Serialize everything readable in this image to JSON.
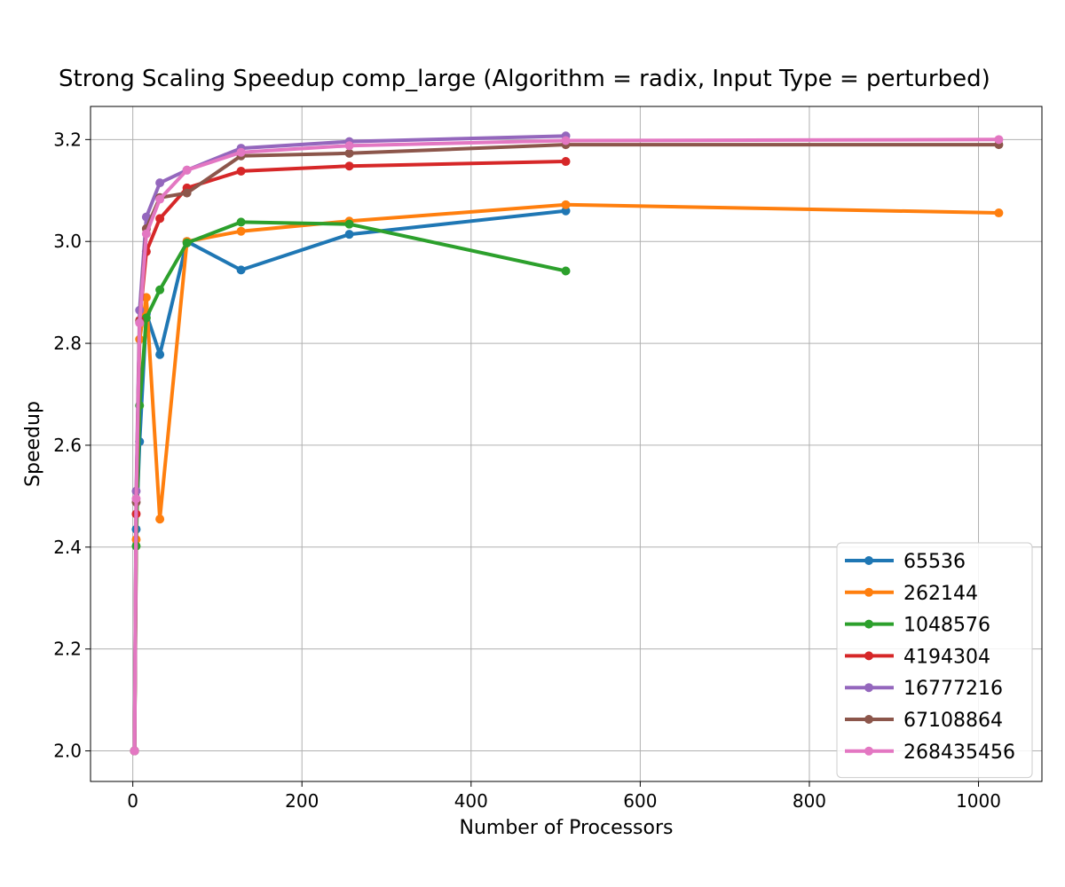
{
  "chart_data": {
    "type": "line",
    "title": "Strong Scaling Speedup comp_large (Algorithm = radix, Input Type = perturbed)",
    "xlabel": "Number of Processors",
    "ylabel": "Speedup",
    "xlim": [
      -50,
      1075
    ],
    "ylim": [
      1.94,
      3.265
    ],
    "xticks": [
      0,
      200,
      400,
      600,
      800,
      1000
    ],
    "yticks": [
      2.0,
      2.2,
      2.4,
      2.6,
      2.8,
      3.0,
      3.2
    ],
    "xtick_labels": [
      "0",
      "200",
      "400",
      "600",
      "800",
      "1000"
    ],
    "ytick_labels": [
      "2.0",
      "2.2",
      "2.4",
      "2.6",
      "2.8",
      "3.0",
      "3.2"
    ],
    "grid": true,
    "legend_position": "lower-right",
    "series": [
      {
        "name": "65536",
        "color": "#1f77b4",
        "x": [
          2,
          4,
          8,
          16,
          32,
          64,
          128,
          256,
          512
        ],
        "y": [
          2.0,
          2.435,
          2.607,
          2.858,
          2.778,
          3.0,
          2.944,
          3.014,
          3.06
        ]
      },
      {
        "name": "262144",
        "color": "#ff7f0e",
        "x": [
          2,
          4,
          8,
          16,
          32,
          64,
          128,
          256,
          512,
          1024
        ],
        "y": [
          2.0,
          2.415,
          2.808,
          2.89,
          2.455,
          3.0,
          3.02,
          3.04,
          3.072,
          3.056
        ]
      },
      {
        "name": "1048576",
        "color": "#2ca02c",
        "x": [
          2,
          4,
          8,
          16,
          32,
          64,
          128,
          256,
          512
        ],
        "y": [
          2.0,
          2.402,
          2.678,
          2.85,
          2.905,
          2.997,
          3.038,
          3.034,
          2.942
        ]
      },
      {
        "name": "4194304",
        "color": "#d62728",
        "x": [
          2,
          4,
          8,
          16,
          32,
          64,
          128,
          256,
          512
        ],
        "y": [
          2.0,
          2.465,
          2.845,
          2.98,
          3.045,
          3.105,
          3.138,
          3.148,
          3.157
        ]
      },
      {
        "name": "16777216",
        "color": "#9467bd",
        "x": [
          2,
          4,
          8,
          16,
          32,
          64,
          128,
          256,
          512
        ],
        "y": [
          2.0,
          2.51,
          2.865,
          3.048,
          3.115,
          3.14,
          3.183,
          3.196,
          3.207
        ]
      },
      {
        "name": "67108864",
        "color": "#8c564b",
        "x": [
          2,
          4,
          8,
          16,
          32,
          64,
          128,
          256,
          512,
          1024
        ],
        "y": [
          2.0,
          2.488,
          2.842,
          3.025,
          3.086,
          3.095,
          3.168,
          3.173,
          3.19,
          3.19
        ]
      },
      {
        "name": "268435456",
        "color": "#e377c2",
        "x": [
          2,
          4,
          8,
          16,
          32,
          64,
          128,
          256,
          512,
          1024
        ],
        "y": [
          2.0,
          2.495,
          2.84,
          3.015,
          3.083,
          3.14,
          3.175,
          3.188,
          3.198,
          3.2
        ]
      }
    ]
  }
}
